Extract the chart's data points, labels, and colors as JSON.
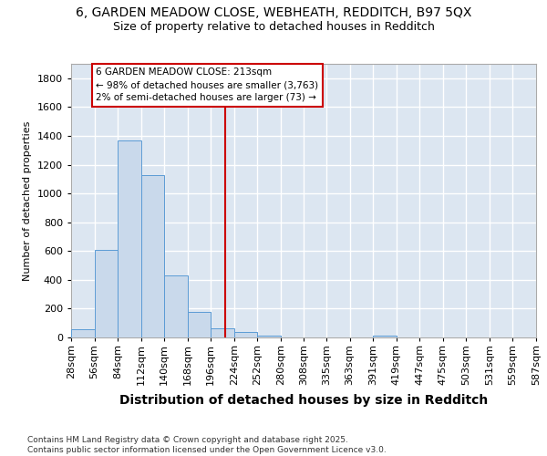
{
  "title_line1": "6, GARDEN MEADOW CLOSE, WEBHEATH, REDDITCH, B97 5QX",
  "title_line2": "Size of property relative to detached houses in Redditch",
  "xlabel": "Distribution of detached houses by size in Redditch",
  "ylabel": "Number of detached properties",
  "bin_edges": [
    28,
    56,
    84,
    112,
    140,
    168,
    196,
    224,
    252,
    280,
    308,
    335,
    363,
    391,
    419,
    447,
    475,
    503,
    531,
    559,
    587
  ],
  "bar_heights": [
    55,
    605,
    1370,
    1125,
    430,
    175,
    65,
    40,
    15,
    0,
    0,
    0,
    0,
    15,
    0,
    0,
    0,
    0,
    0,
    0
  ],
  "bar_color": "#c9d9eb",
  "bar_edge_color": "#5b9bd5",
  "vline_x": 213,
  "vline_color": "#cc0000",
  "annotation_line1": "6 GARDEN MEADOW CLOSE: 213sqm",
  "annotation_line2": "← 98% of detached houses are smaller (3,763)",
  "annotation_line3": "2% of semi-detached houses are larger (73) →",
  "annotation_box_edgecolor": "#cc0000",
  "annotation_bg_color": "#ffffff",
  "ylim": [
    0,
    1900
  ],
  "yticks": [
    0,
    200,
    400,
    600,
    800,
    1000,
    1200,
    1400,
    1600,
    1800
  ],
  "background_color": "#dce6f1",
  "grid_color": "#ffffff",
  "title1_fontsize": 10,
  "title2_fontsize": 9,
  "tick_label_fontsize": 8,
  "xlabel_fontsize": 10,
  "ylabel_fontsize": 8,
  "ytick_fontsize": 8,
  "footer_text": "Contains HM Land Registry data © Crown copyright and database right 2025.\nContains public sector information licensed under the Open Government Licence v3.0."
}
